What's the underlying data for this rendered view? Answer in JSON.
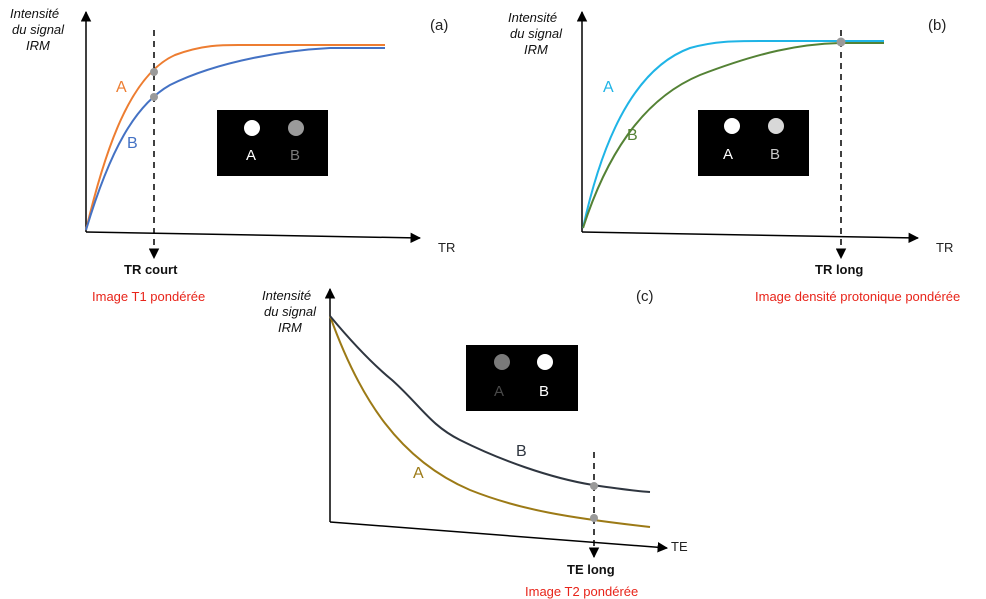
{
  "colors": {
    "axis": "#000000",
    "a_orange": "#ed7d31",
    "b_blue": "#4472c4",
    "a_cyan": "#1fb4e6",
    "b_green": "#548235",
    "a_gold": "#9c7a16",
    "b_dark": "#2f3640",
    "caption_red": "#e8241a",
    "marker_grey": "#9a9a9a",
    "box_bg": "#000000"
  },
  "panel_a": {
    "ylabel": [
      "Intensité",
      "du signal",
      "IRM"
    ],
    "tag": "(a)",
    "xlabel": "TR",
    "curve_a": "A",
    "curve_b": "B",
    "marker_label": "TR court",
    "caption": "Image T1 pondérée",
    "box": {
      "left": "A",
      "right": "B"
    }
  },
  "panel_b": {
    "ylabel": [
      "Intensité",
      "du signal",
      "IRM"
    ],
    "tag": "(b)",
    "xlabel": "TR",
    "curve_a": "A",
    "curve_b": "B",
    "marker_label": "TR long",
    "caption": "Image densité protonique  pondérée",
    "box": {
      "left": "A",
      "right": "B"
    }
  },
  "panel_c": {
    "ylabel": [
      "Intensité",
      "du signal",
      "IRM"
    ],
    "tag": "(c)",
    "xlabel": "TE",
    "curve_a": "A",
    "curve_b": "B",
    "marker_label": "TE long",
    "caption": "Image T2 pondérée",
    "box": {
      "left": "A",
      "right": "B"
    }
  }
}
